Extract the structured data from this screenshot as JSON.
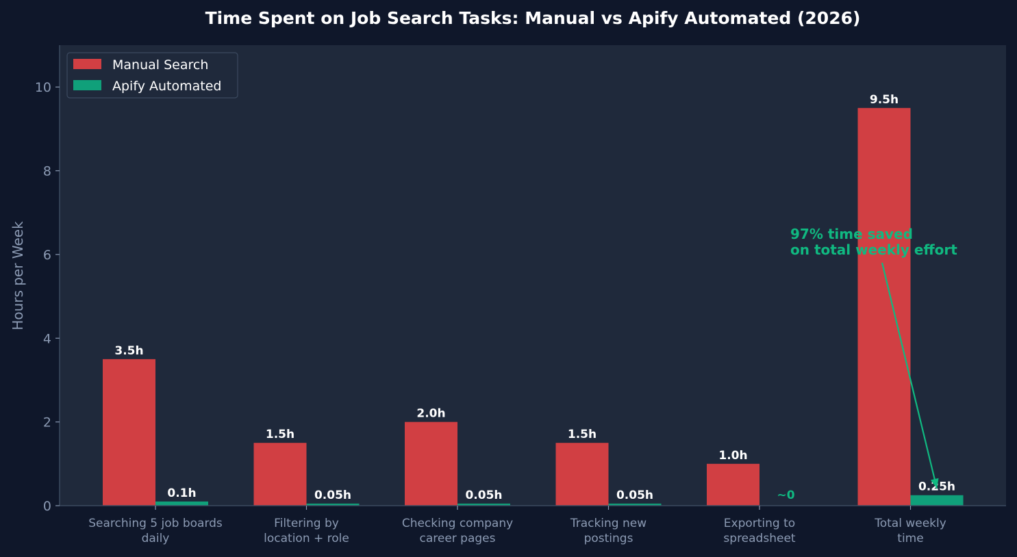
{
  "chart_data": {
    "type": "bar",
    "title": "Time Spent on Job Search Tasks: Manual vs Apify Automated (2026)",
    "xlabel": "",
    "ylabel": "Hours per Week",
    "ylim": [
      0,
      11
    ],
    "yticks": [
      0,
      2,
      4,
      6,
      8,
      10
    ],
    "grid": false,
    "legend_position": "top-left",
    "categories": [
      [
        "Searching 5 job boards",
        "daily"
      ],
      [
        "Filtering by",
        "location + role"
      ],
      [
        "Checking company",
        "career pages"
      ],
      [
        "Tracking new",
        "postings"
      ],
      [
        "Exporting to",
        "spreadsheet"
      ],
      [
        "Total weekly",
        "time"
      ]
    ],
    "series": [
      {
        "name": "Manual Search",
        "color": "#d13f43",
        "values": [
          3.5,
          1.5,
          2.0,
          1.5,
          1.0,
          9.5
        ],
        "labels": [
          "3.5h",
          "1.5h",
          "2.0h",
          "1.5h",
          "1.0h",
          "9.5h"
        ]
      },
      {
        "name": "Apify Automated",
        "color": "#10a07a",
        "values": [
          0.1,
          0.05,
          0.05,
          0.05,
          0,
          0.25
        ],
        "labels": [
          "0.1h",
          "0.05h",
          "0.05h",
          "0.05h",
          "~0",
          "0.25h"
        ]
      }
    ],
    "annotation": {
      "lines": [
        "97% time saved",
        "on total weekly effort"
      ],
      "color": "#10b981",
      "text_anchor": [
        4.74,
        6.5
      ],
      "arrow_target": [
        5.18,
        0.38
      ]
    },
    "colors": {
      "page_background": "#0f172a",
      "plot_background": "#1f293b",
      "text": "#ffffff",
      "muted": "#8b9ab3",
      "axis": "#3c4a60"
    }
  }
}
